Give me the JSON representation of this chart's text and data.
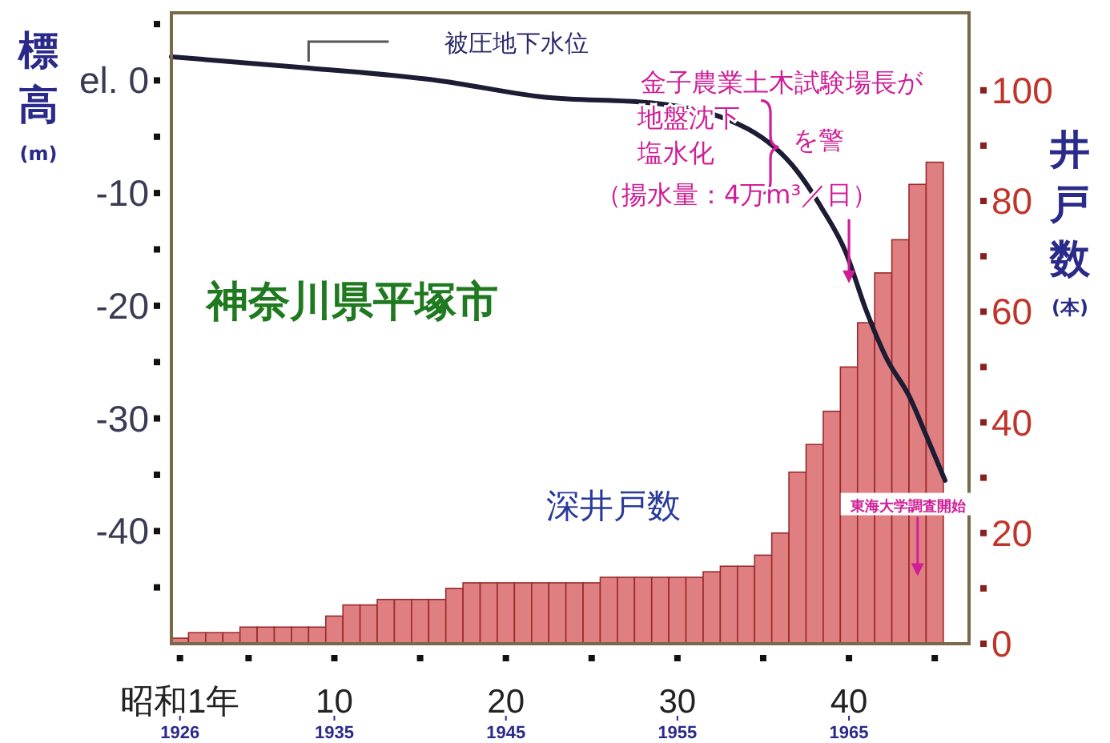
{
  "chart_data": {
    "type": "bar",
    "title": "神奈川県平塚市",
    "ylabel": "標高(m)",
    "y2label": "井戸数(本)",
    "x": [
      1,
      2,
      3,
      4,
      5,
      6,
      7,
      8,
      9,
      10,
      11,
      12,
      13,
      14,
      15,
      16,
      17,
      18,
      19,
      20,
      21,
      22,
      23,
      24,
      25,
      26,
      27,
      28,
      29,
      30,
      31,
      32,
      33,
      34,
      35,
      36,
      37,
      38,
      39,
      40,
      41,
      42,
      43,
      44,
      45
    ],
    "xlim": [
      0.5,
      47
    ],
    "xticks": [
      {
        "value": 1,
        "label": "昭和1年"
      },
      {
        "value": 5,
        "label": null
      },
      10,
      {
        "value": 15,
        "label": null
      },
      20,
      {
        "value": 25,
        "label": null
      },
      30,
      {
        "value": 35,
        "label": null
      },
      40,
      {
        "value": 45,
        "label": null
      }
    ],
    "x2lim": [
      1925.5,
      1972
    ],
    "x2ticks": [
      1926,
      1935,
      1945,
      1955,
      1965
    ],
    "ylim": [
      -50,
      6
    ],
    "yticks": [
      {
        "value": 5,
        "label": null
      },
      {
        "value": 0,
        "label": "el. 0"
      },
      {
        "value": -5,
        "label": null
      },
      -10,
      {
        "value": -15,
        "label": null
      },
      -20,
      {
        "value": -25,
        "label": null
      },
      -30,
      {
        "value": -35,
        "label": null
      },
      -40,
      {
        "value": -45,
        "label": null
      }
    ],
    "y2lim": [
      0,
      114
    ],
    "y2ticks": [
      0,
      {
        "value": 10,
        "label": null
      },
      20,
      {
        "value": 30,
        "label": null
      },
      40,
      {
        "value": 50,
        "label": null
      },
      60,
      {
        "value": 70,
        "label": null
      },
      80,
      {
        "value": 90,
        "label": null
      },
      100
    ],
    "series": [
      {
        "type": "line",
        "name": "被圧地下水位",
        "color": "#1c1c34",
        "x": [
          0.5,
          8.5,
          16,
          22.3,
          28.5,
          34.1,
          37,
          38.4,
          39.8,
          41,
          42.2,
          43.5,
          44.5,
          45.6
        ],
        "values": [
          2.1,
          1.1,
          0,
          -1.5,
          -2,
          -4.3,
          -8.1,
          -11.3,
          -15.2,
          -20.4,
          -24.7,
          -28,
          -31.5,
          -35.5
        ]
      },
      {
        "name": "深井戸数",
        "axis": "y2",
        "color": "#e07f82",
        "values": [
          1,
          2,
          2,
          2,
          3,
          3,
          3,
          3,
          3,
          5,
          7,
          7,
          8,
          8,
          8,
          8,
          10,
          11,
          11,
          11,
          11,
          11,
          11,
          11,
          11,
          12,
          12,
          12,
          12,
          12,
          12,
          13,
          14,
          14,
          16,
          20,
          31,
          36,
          42,
          50,
          58,
          67,
          73,
          83,
          87
        ]
      }
    ],
    "annotations": [
      "金子農業土木試験場長が",
      "地盤沈下",
      "塩水化",
      "を警",
      {
        "text": "（揚水量：4万m³／日）",
        "x": 40,
        "y": -18
      },
      {
        "text": "東海大学調査開始",
        "x": 44,
        "y": -44
      }
    ]
  }
}
